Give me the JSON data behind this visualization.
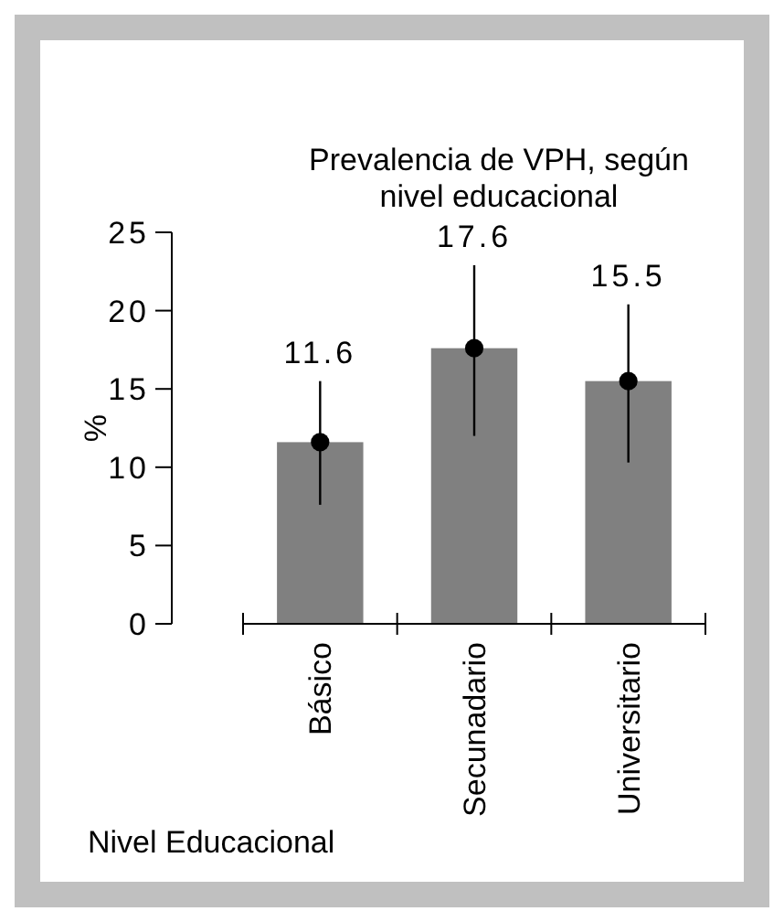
{
  "chart_data": {
    "type": "bar",
    "title": "Prevalencia de VPH, según nivel educacional",
    "xlabel": "Nivel Educacional",
    "ylabel": "%",
    "categories": [
      "Básico",
      "Secunadario",
      "Universitario"
    ],
    "series": [
      {
        "color": "#808080",
        "values": [
          11.6,
          17.6,
          15.5
        ],
        "value_labels": [
          "11.6",
          "17.6",
          "15.5"
        ],
        "errors": [
          [
            7.6,
            15.5
          ],
          [
            12.0,
            22.9
          ],
          [
            10.3,
            20.4
          ]
        ]
      },
      {
        "type": "scatter",
        "color": "#000000",
        "marker": "circle",
        "x": [
          "Básico",
          "Secunadario",
          "Universitario"
        ],
        "values": [
          11.6,
          17.6,
          15.5
        ]
      }
    ],
    "ylim": [
      0,
      25
    ],
    "yticks": [
      0,
      5,
      10,
      15,
      20,
      25
    ]
  }
}
